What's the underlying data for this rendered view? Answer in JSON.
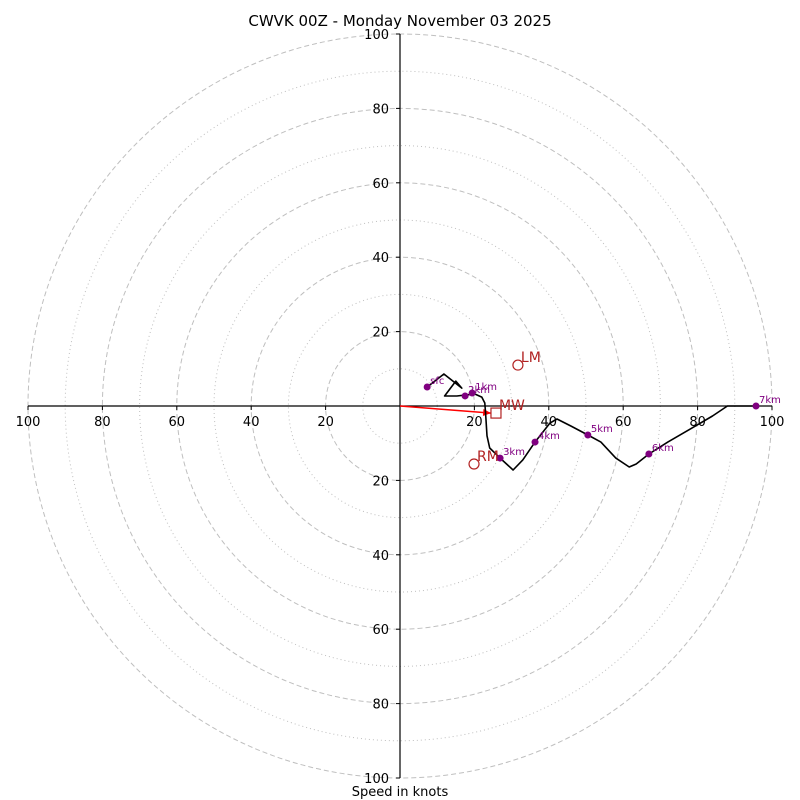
{
  "chart_data": {
    "type": "line",
    "subtype": "hodograph",
    "title": "CWVK 00Z - Monday November 03 2025",
    "xlabel": "Speed in knots",
    "ylabel": "",
    "range_knots": 100,
    "ring_major_knots": [
      20,
      40,
      60,
      80,
      100
    ],
    "ring_minor_knots": [
      10,
      30,
      50,
      70,
      90
    ],
    "tick_labels": {
      "left": [
        "100",
        "80",
        "60",
        "40",
        "20"
      ],
      "right": [
        "20",
        "40",
        "60",
        "80",
        "100"
      ],
      "top": [
        "100",
        "80",
        "60",
        "40",
        "20"
      ],
      "bottom": [
        "20",
        "40",
        "60",
        "80",
        "100"
      ]
    },
    "trace": {
      "name": "wind profile",
      "color": "#000000",
      "u": [
        7.3,
        11.8,
        16.6,
        15.0,
        12.0,
        15.3,
        18.0,
        20.2,
        22.0,
        22.8,
        23.0,
        23.4,
        24.1,
        26.9,
        30.4,
        33.0,
        36.3,
        40.3,
        42.2,
        46.0,
        50.5,
        54.0,
        58.0,
        61.6,
        63.5,
        66.9,
        72.0,
        78.0,
        84.0,
        88.0,
        92.0,
        95.7
      ],
      "v": [
        5.1,
        8.6,
        4.8,
        6.7,
        2.7,
        2.7,
        3.0,
        3.2,
        2.4,
        0.8,
        -2.0,
        -8.0,
        -11.3,
        -14.0,
        -17.2,
        -14.5,
        -9.7,
        -4.6,
        -3.5,
        -5.4,
        -7.8,
        -9.7,
        -14.0,
        -16.4,
        -15.6,
        -12.9,
        -9.7,
        -6.2,
        -2.7,
        0.0,
        0.0,
        0.0
      ]
    },
    "height_points": [
      {
        "label": "sfc",
        "u": 7.3,
        "v": 5.1
      },
      {
        "label": "1km",
        "u": 19.4,
        "v": 3.5
      },
      {
        "label": "2km",
        "u": 17.5,
        "v": 2.7
      },
      {
        "label": "3km",
        "u": 26.9,
        "v": -14.0
      },
      {
        "label": "4km",
        "u": 36.3,
        "v": -9.7
      },
      {
        "label": "5km",
        "u": 50.5,
        "v": -7.8
      },
      {
        "label": "6km",
        "u": 66.9,
        "v": -12.9
      },
      {
        "label": "7km",
        "u": 95.7,
        "v": 0.0
      }
    ],
    "storm_motions": [
      {
        "label": "LM",
        "u": 31.7,
        "v": 11.0,
        "marker": "circle"
      },
      {
        "label": "RM",
        "u": 19.9,
        "v": -15.6,
        "marker": "circle"
      },
      {
        "label": "MW",
        "u": 25.8,
        "v": -1.9,
        "marker": "square"
      }
    ],
    "mean_wind_vector": {
      "from_u": 0,
      "from_v": 0,
      "to_u": 24.5,
      "to_v": -1.9,
      "color": "#ff0000"
    },
    "colors": {
      "trace": "#000000",
      "height_points": "#800080",
      "storm_motion": "#b22222",
      "mean_wind_arrow": "#ff0000",
      "rings": "#bfbfbf",
      "axes": "#000000"
    },
    "grid": true,
    "legend": "none"
  }
}
